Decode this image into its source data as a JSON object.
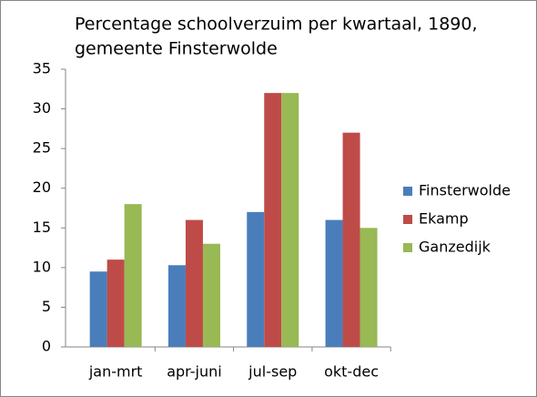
{
  "chart_data": {
    "type": "bar",
    "title": [
      "Percentage schoolverzuim per kwartaal, 1890,",
      "gemeente Finsterwolde"
    ],
    "categories": [
      "jan-mrt",
      "apr-juni",
      "jul-sep",
      "okt-dec"
    ],
    "series": [
      {
        "name": "Finsterwolde",
        "color": "#4a7ebb",
        "values": [
          9.5,
          10.3,
          17,
          16
        ]
      },
      {
        "name": "Ekamp",
        "color": "#be4b48",
        "values": [
          11,
          16,
          32,
          27
        ]
      },
      {
        "name": "Ganzedijk",
        "color": "#98b954",
        "values": [
          18,
          13,
          32,
          15
        ]
      }
    ],
    "ylim": [
      0,
      35
    ],
    "yticks": [
      0,
      5,
      10,
      15,
      20,
      25,
      30,
      35
    ],
    "grid": false,
    "legend": "right"
  }
}
